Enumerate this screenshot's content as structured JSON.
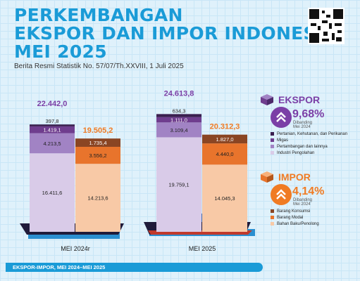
{
  "header": {
    "line1": "PERKEMBANGAN",
    "line2": "EKSPOR DAN IMPOR INDONESIA",
    "line3": "MEI 2025",
    "subtitle": "Berita Resmi Statistik No. 57/07/Th.XXVIII, 1 Juli 2025"
  },
  "colors": {
    "title": "#1a9bd7",
    "ekspor_total": "#7b3fa6",
    "impor_total": "#f07b23",
    "pertanian": "#3b1f4f",
    "migas": "#6f3d8e",
    "pertambangan": "#a183c4",
    "industri": "#d9cbe8",
    "barang_konsumsi": "#8a4523",
    "barang_modal": "#e8742c",
    "bahan_baku": "#f8c9a6"
  },
  "ekspor": {
    "label": "EKSPOR",
    "change": "9,68%",
    "change_note": "Dibanding Mei 2024",
    "legend": [
      "Pertanian, Kehutanan, dan Perikanan",
      "Migas",
      "Pertambangan dan lainnya",
      "Industri Pengolahan"
    ]
  },
  "impor": {
    "label": "IMPOR",
    "change": "4,14%",
    "change_note": "Dibanding Mei 2024",
    "legend": [
      "Barang Konsumsi",
      "Barang Modal",
      "Bahan Baku/Penolong"
    ]
  },
  "footer": {
    "label": "EKSPOR-IMPOR, MEI 2024–MEI 2025"
  },
  "chart_data": {
    "type": "bar",
    "stacked": true,
    "categories": [
      "MEI 2024",
      "MEI 2025"
    ],
    "category_labels": [
      "MEI 2024r",
      "MEI 2025"
    ],
    "groups": [
      {
        "name": "Ekspor",
        "totals": [
          22442.0,
          24613.8
        ],
        "total_labels": [
          "22.442,0",
          "24.613,8"
        ],
        "series": [
          {
            "name": "Industri Pengolahan",
            "values": [
              16411.6,
              19759.1
            ],
            "labels": [
              "16.411,6",
              "19.759,1"
            ]
          },
          {
            "name": "Pertambangan dan lainnya",
            "values": [
              4213.5,
              3109.4
            ],
            "labels": [
              "4.213,5",
              "3.109,4"
            ]
          },
          {
            "name": "Migas",
            "values": [
              1419.1,
              1111.0
            ],
            "labels": [
              "1.419,1",
              "1.111,0"
            ]
          },
          {
            "name": "Pertanian, Kehutanan, dan Perikanan",
            "values": [
              397.8,
              634.3
            ],
            "labels": [
              "397,8",
              "634,3"
            ]
          }
        ]
      },
      {
        "name": "Impor",
        "totals": [
          19505.2,
          20312.3
        ],
        "total_labels": [
          "19.505,2",
          "20.312,3"
        ],
        "series": [
          {
            "name": "Bahan Baku/Penolong",
            "values": [
              14213.6,
              14045.3
            ],
            "labels": [
              "14.213,6",
              "14.045,3"
            ]
          },
          {
            "name": "Barang Modal",
            "values": [
              3556.2,
              4440.0
            ],
            "labels": [
              "3.556,2",
              "4.440,0"
            ]
          },
          {
            "name": "Barang Konsumsi",
            "values": [
              1735.4,
              1827.0
            ],
            "labels": [
              "1.735,4",
              "1.827,0"
            ]
          }
        ]
      }
    ]
  }
}
